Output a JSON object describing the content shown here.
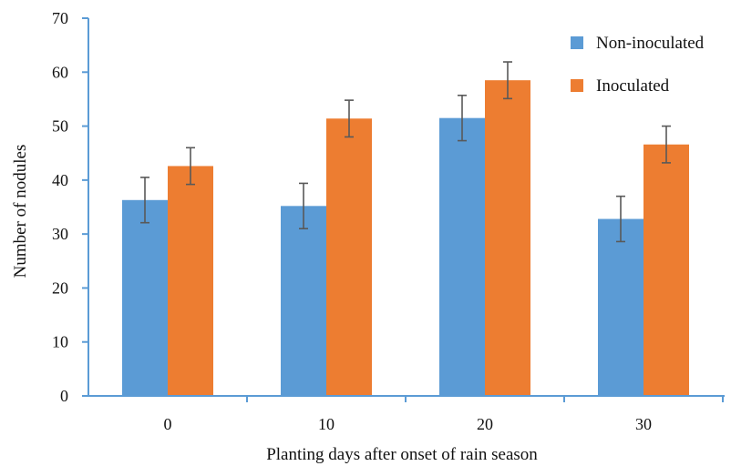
{
  "chart_data": {
    "type": "bar",
    "categories": [
      "0",
      "10",
      "20",
      "30"
    ],
    "series": [
      {
        "name": "Non-inoculated",
        "color": "#5b9bd5",
        "values": [
          36.3,
          35.2,
          51.5,
          32.8
        ],
        "errors": [
          4.2,
          4.2,
          4.2,
          4.2
        ]
      },
      {
        "name": "Inoculated",
        "color": "#ed7d31",
        "values": [
          42.6,
          51.4,
          58.5,
          46.6
        ],
        "errors": [
          3.4,
          3.4,
          3.4,
          3.4
        ]
      }
    ],
    "xlabel": "Planting days after onset of rain season",
    "ylabel": "Number of nodules",
    "ylim": [
      0,
      70
    ],
    "yticks": [
      "0",
      "10",
      "20",
      "30",
      "40",
      "50",
      "60",
      "70"
    ],
    "grid": false,
    "legend": "top-right",
    "axis_color": "#5b9bd5",
    "error_bar_color": "#595959"
  }
}
